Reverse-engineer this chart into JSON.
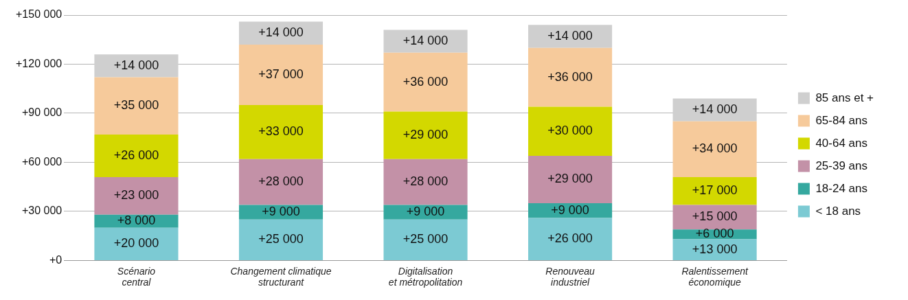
{
  "chart_data": {
    "type": "bar",
    "stacked": true,
    "categories": [
      "Scénario\ncentral",
      "Changement climatique\nstructurant",
      "Digitalisation\net métropolitation",
      "Renouveau\nindustriel",
      "Ralentissement\néconomique"
    ],
    "series": [
      {
        "name": "< 18 ans",
        "color": "#7ccad3",
        "values": [
          20000,
          25000,
          25000,
          26000,
          13000
        ],
        "value_labels": [
          "+20 000",
          "+25 000",
          "+25 000",
          "+26 000",
          "+13 000"
        ]
      },
      {
        "name": "18-24 ans",
        "color": "#35a89f",
        "values": [
          8000,
          9000,
          9000,
          9000,
          6000
        ],
        "value_labels": [
          "+8 000",
          "+9 000",
          "+9 000",
          "+9 000",
          "+6 000"
        ]
      },
      {
        "name": "25-39 ans",
        "color": "#c391a7",
        "values": [
          23000,
          28000,
          28000,
          29000,
          15000
        ],
        "value_labels": [
          "+23 000",
          "+28 000",
          "+28 000",
          "+29 000",
          "+15 000"
        ]
      },
      {
        "name": "40-64 ans",
        "color": "#d3d800",
        "values": [
          26000,
          33000,
          29000,
          30000,
          17000
        ],
        "value_labels": [
          "+26 000",
          "+33 000",
          "+29 000",
          "+30 000",
          "+17 000"
        ]
      },
      {
        "name": "65-84 ans",
        "color": "#f6ca9b",
        "values": [
          35000,
          37000,
          36000,
          36000,
          34000
        ],
        "value_labels": [
          "+35 000",
          "+37 000",
          "+36 000",
          "+36 000",
          "+34 000"
        ]
      },
      {
        "name": "85 ans et +",
        "color": "#cfcfcf",
        "values": [
          14000,
          14000,
          14000,
          14000,
          14000
        ],
        "value_labels": [
          "+14 000",
          "+14 000",
          "+14 000",
          "+14 000",
          "+14 000"
        ]
      }
    ],
    "ylim": [
      0,
      150000
    ],
    "yticks": [
      {
        "value": 0,
        "label": "+0"
      },
      {
        "value": 30000,
        "label": "+30 000"
      },
      {
        "value": 60000,
        "label": "+60 000"
      },
      {
        "value": 90000,
        "label": "+90 000"
      },
      {
        "value": 120000,
        "label": "+120 000"
      },
      {
        "value": 150000,
        "label": "+150 000"
      }
    ],
    "grid": "y",
    "legend": "right"
  }
}
